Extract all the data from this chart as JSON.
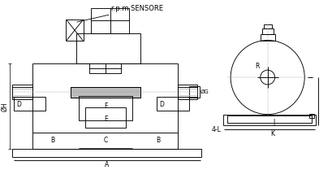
{
  "bg_color": "#ffffff",
  "line_color": "#000000",
  "gray_color": "#bbbbbb",
  "annotation_rpm": "r.p.m SENSORE",
  "label_A": "A",
  "label_B": "B",
  "label_C": "C",
  "label_D": "D",
  "label_E": "E",
  "label_F": "F",
  "label_H": "ØH",
  "label_G": "ØG",
  "label_J": "J",
  "label_K": "K",
  "label_L": "4-L",
  "label_R": "R",
  "font_size": 5.5
}
